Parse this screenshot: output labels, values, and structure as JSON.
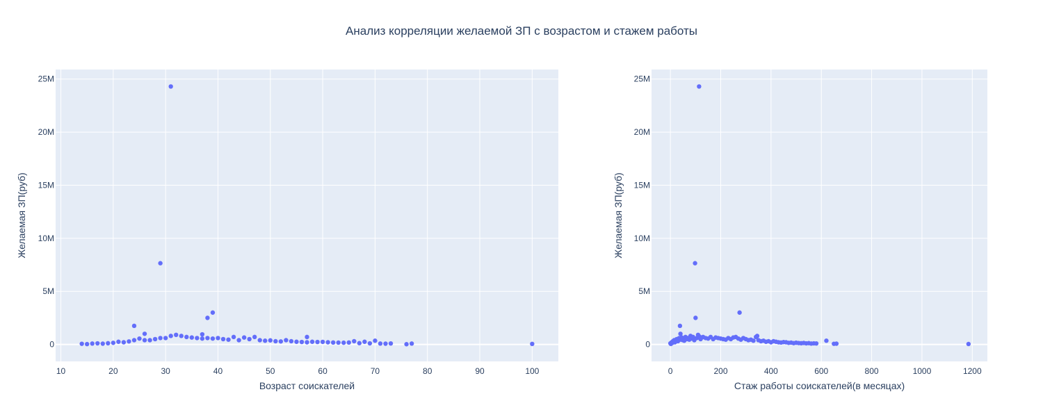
{
  "title": "Анализ корреляции желаемой ЗП с возрастом и стажем работы",
  "colors": {
    "marker": "#636efa",
    "plot_bg": "#e5ecf6",
    "grid": "#ffffff",
    "text": "#2a3f5f"
  },
  "chart_data": [
    {
      "type": "scatter",
      "xlabel": "Возраст соискателей",
      "ylabel": "Желаемая ЗП(руб)",
      "xlim": [
        9,
        105
      ],
      "ylim": [
        -1600000,
        25900000
      ],
      "x_ticks": [
        10,
        20,
        30,
        40,
        50,
        60,
        70,
        80,
        90,
        100
      ],
      "y_ticks": [
        0,
        5000000,
        10000000,
        15000000,
        20000000,
        25000000
      ],
      "y_tick_labels": [
        "0",
        "5M",
        "10M",
        "15M",
        "20M",
        "25M"
      ],
      "grid": true,
      "series": [
        {
          "x": [
            14,
            15,
            16,
            17,
            18,
            19,
            20,
            21,
            22,
            23,
            24,
            24,
            25,
            26,
            26,
            27,
            28,
            29,
            29,
            30,
            31,
            31,
            32,
            33,
            34,
            35,
            36,
            37,
            37,
            38,
            38,
            39,
            39,
            40,
            41,
            42,
            43,
            44,
            45,
            46,
            47,
            48,
            49,
            50,
            51,
            52,
            53,
            54,
            55,
            56,
            57,
            57,
            58,
            59,
            60,
            61,
            62,
            63,
            64,
            65,
            66,
            67,
            68,
            69,
            70,
            71,
            72,
            73,
            76,
            77,
            100
          ],
          "y": [
            60000,
            30000,
            80000,
            100000,
            70000,
            110000,
            150000,
            250000,
            200000,
            280000,
            400000,
            1750000,
            550000,
            400000,
            1000000,
            400000,
            500000,
            600000,
            7650000,
            600000,
            24300000,
            800000,
            900000,
            800000,
            700000,
            650000,
            600000,
            550000,
            950000,
            600000,
            2500000,
            550000,
            3000000,
            600000,
            500000,
            450000,
            700000,
            400000,
            650000,
            500000,
            700000,
            400000,
            350000,
            380000,
            300000,
            280000,
            400000,
            300000,
            250000,
            230000,
            200000,
            700000,
            250000,
            230000,
            240000,
            200000,
            180000,
            170000,
            160000,
            180000,
            300000,
            120000,
            250000,
            100000,
            350000,
            80000,
            70000,
            90000,
            20000,
            80000,
            50000
          ]
        }
      ]
    },
    {
      "type": "scatter",
      "xlabel": "Стаж работы соискателей(в месяцах)",
      "ylabel": "Желаемая ЗП(руб)",
      "xlim": [
        -75,
        1260
      ],
      "ylim": [
        -1600000,
        25900000
      ],
      "x_ticks": [
        0,
        200,
        400,
        600,
        800,
        1000,
        1200
      ],
      "y_ticks": [
        0,
        5000000,
        10000000,
        15000000,
        20000000,
        25000000
      ],
      "y_tick_labels": [
        "0",
        "5M",
        "10M",
        "15M",
        "20M",
        "25M"
      ],
      "grid": true,
      "series": [
        {
          "x": [
            0,
            2,
            5,
            8,
            10,
            12,
            15,
            18,
            20,
            25,
            30,
            35,
            38,
            40,
            42,
            45,
            50,
            55,
            60,
            65,
            70,
            75,
            80,
            85,
            90,
            95,
            98,
            100,
            105,
            110,
            114,
            115,
            120,
            125,
            130,
            140,
            150,
            160,
            170,
            180,
            190,
            200,
            210,
            220,
            230,
            240,
            250,
            260,
            270,
            275,
            280,
            290,
            300,
            310,
            320,
            330,
            340,
            345,
            350,
            360,
            370,
            380,
            390,
            400,
            410,
            420,
            430,
            440,
            450,
            460,
            470,
            480,
            490,
            500,
            510,
            520,
            530,
            540,
            550,
            560,
            570,
            580,
            620,
            650,
            660,
            1185
          ],
          "y": [
            100000,
            50000,
            200000,
            150000,
            300000,
            250000,
            400000,
            200000,
            350000,
            500000,
            300000,
            600000,
            1750000,
            1000000,
            450000,
            650000,
            400000,
            350000,
            700000,
            500000,
            600000,
            450000,
            800000,
            550000,
            700000,
            400000,
            7650000,
            2500000,
            600000,
            900000,
            24300000,
            750000,
            500000,
            650000,
            700000,
            600000,
            550000,
            700000,
            500000,
            650000,
            600000,
            550000,
            500000,
            450000,
            600000,
            500000,
            650000,
            700000,
            550000,
            3000000,
            450000,
            600000,
            500000,
            400000,
            450000,
            350000,
            700000,
            800000,
            400000,
            300000,
            350000,
            250000,
            300000,
            200000,
            300000,
            250000,
            200000,
            180000,
            220000,
            200000,
            150000,
            170000,
            120000,
            160000,
            130000,
            110000,
            140000,
            100000,
            120000,
            80000,
            100000,
            90000,
            350000,
            60000,
            70000,
            40000
          ]
        }
      ]
    }
  ]
}
